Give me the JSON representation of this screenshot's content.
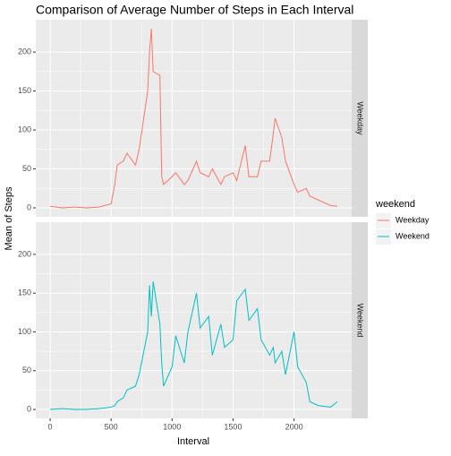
{
  "chart_data": {
    "type": "line",
    "title": "Comparison of Average Number of Steps in Each Interval",
    "x_label": "Interval",
    "y_label": "Mean of Steps",
    "legend_title": "weekend",
    "x": [
      0,
      100,
      200,
      300,
      400,
      500,
      530,
      550,
      600,
      630,
      700,
      730,
      800,
      815,
      830,
      845,
      900,
      915,
      930,
      1000,
      1030,
      1100,
      1130,
      1200,
      1230,
      1300,
      1330,
      1400,
      1430,
      1500,
      1530,
      1600,
      1630,
      1700,
      1730,
      1800,
      1830,
      1845,
      1900,
      1930,
      2000,
      2030,
      2100,
      2130,
      2200,
      2300,
      2355
    ],
    "series": [
      {
        "name": "Weekday",
        "color": "#f8766d",
        "values": [
          2,
          0,
          1,
          0,
          1,
          5,
          30,
          55,
          60,
          70,
          55,
          75,
          150,
          200,
          230,
          175,
          170,
          40,
          30,
          40,
          45,
          30,
          35,
          60,
          45,
          40,
          50,
          30,
          40,
          45,
          35,
          80,
          40,
          40,
          60,
          60,
          95,
          115,
          90,
          60,
          30,
          20,
          25,
          15,
          10,
          3,
          2
        ]
      },
      {
        "name": "Weekend",
        "color": "#00bfc4",
        "values": [
          0,
          1,
          0,
          0,
          1,
          3,
          5,
          10,
          15,
          25,
          30,
          45,
          100,
          160,
          120,
          165,
          110,
          60,
          30,
          55,
          95,
          60,
          100,
          150,
          105,
          120,
          70,
          110,
          80,
          90,
          140,
          155,
          115,
          130,
          90,
          70,
          80,
          60,
          75,
          45,
          100,
          55,
          35,
          10,
          5,
          3,
          10
        ]
      }
    ],
    "xlim": [
      -117.75,
      2472.75
    ],
    "xticks": [
      0,
      500,
      1000,
      1500,
      2000
    ],
    "ylim": [
      -11.5,
      241.5
    ],
    "yticks": [
      0,
      50,
      100,
      150,
      200
    ],
    "grid": true,
    "facet": "series",
    "legend": "right"
  }
}
